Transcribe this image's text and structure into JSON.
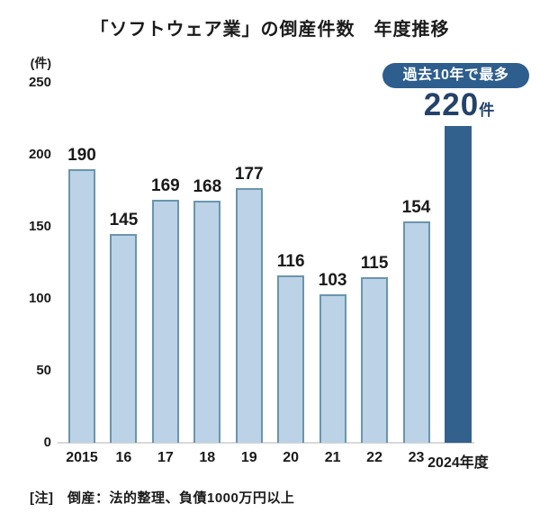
{
  "title": "「ソフトウェア業」の倒産件数　年度推移",
  "chart_data": {
    "type": "bar",
    "title": "「ソフトウェア業」の倒産件数　年度推移",
    "unit_label": "(件)",
    "categories": [
      "2015",
      "16",
      "17",
      "18",
      "19",
      "20",
      "21",
      "22",
      "23",
      "2024年度"
    ],
    "values": [
      190,
      145,
      169,
      168,
      177,
      116,
      103,
      115,
      154,
      220
    ],
    "highlight_index": 9,
    "xlabel": "年度",
    "ylabel": "件",
    "ylim": [
      0,
      250
    ],
    "yticks": [
      0,
      50,
      100,
      150,
      200,
      250
    ],
    "grid": false,
    "legend": "none",
    "colors": {
      "bar_fill": "#BCD2E6",
      "bar_border": "#6A95AE",
      "highlight_fill": "#33618E",
      "axis_line": "#D8D8D8",
      "label_text": "#1A1A1A"
    }
  },
  "annotation": {
    "badge_label": "過去10年で最多",
    "value": "220",
    "unit": "件",
    "badge_color": "#2D5E8E",
    "text_color": "#24426B"
  },
  "footnote": "[注]　倒産：法的整理、負債1000万円以上"
}
